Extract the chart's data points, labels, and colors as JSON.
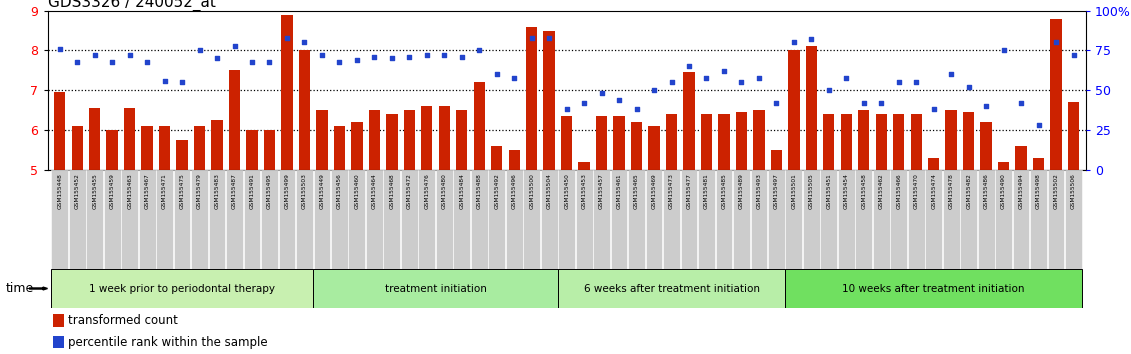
{
  "title": "GDS3326 / 240052_at",
  "ylim_left": [
    5,
    9
  ],
  "ylim_right": [
    0,
    100
  ],
  "yticks_left": [
    5,
    6,
    7,
    8,
    9
  ],
  "yticks_right": [
    0,
    25,
    50,
    75,
    100
  ],
  "ytick_labels_right": [
    "0",
    "25",
    "50",
    "75",
    "100%"
  ],
  "bar_color": "#cc2200",
  "dot_color": "#2244cc",
  "categories": [
    "GSM155448",
    "GSM155452",
    "GSM155455",
    "GSM155459",
    "GSM155463",
    "GSM155467",
    "GSM155471",
    "GSM155475",
    "GSM155479",
    "GSM155483",
    "GSM155487",
    "GSM155491",
    "GSM155495",
    "GSM155499",
    "GSM155503",
    "GSM155449",
    "GSM155456",
    "GSM155460",
    "GSM155464",
    "GSM155468",
    "GSM155472",
    "GSM155476",
    "GSM155480",
    "GSM155484",
    "GSM155488",
    "GSM155492",
    "GSM155496",
    "GSM155500",
    "GSM155504",
    "GSM155450",
    "GSM155453",
    "GSM155457",
    "GSM155461",
    "GSM155465",
    "GSM155469",
    "GSM155473",
    "GSM155477",
    "GSM155481",
    "GSM155485",
    "GSM155489",
    "GSM155493",
    "GSM155497",
    "GSM155501",
    "GSM155505",
    "GSM155451",
    "GSM155454",
    "GSM155458",
    "GSM155462",
    "GSM155466",
    "GSM155470",
    "GSM155474",
    "GSM155478",
    "GSM155482",
    "GSM155486",
    "GSM155490",
    "GSM155494",
    "GSM155498",
    "GSM155502",
    "GSM155506"
  ],
  "bar_values": [
    6.95,
    6.1,
    6.55,
    6.0,
    6.55,
    6.1,
    6.1,
    5.75,
    6.1,
    6.25,
    7.5,
    6.0,
    6.0,
    8.9,
    8.0,
    6.5,
    6.1,
    6.2,
    6.5,
    6.4,
    6.5,
    6.6,
    6.6,
    6.5,
    7.2,
    5.6,
    5.5,
    8.6,
    8.5,
    6.35,
    5.2,
    6.35,
    6.35,
    6.2,
    6.1,
    6.4,
    7.45,
    6.4,
    6.4,
    6.45,
    6.5,
    5.5,
    8.0,
    8.1,
    6.4,
    6.4,
    6.5,
    6.4,
    6.4,
    6.4,
    5.3,
    6.5,
    6.45,
    6.2,
    5.2,
    5.6,
    5.3,
    8.8,
    6.7
  ],
  "dot_values": [
    76,
    68,
    72,
    68,
    72,
    68,
    56,
    55,
    75,
    70,
    78,
    68,
    68,
    83,
    80,
    72,
    68,
    69,
    71,
    70,
    71,
    72,
    72,
    71,
    75,
    60,
    58,
    83,
    83,
    38,
    42,
    48,
    44,
    38,
    50,
    55,
    65,
    58,
    62,
    55,
    58,
    42,
    80,
    82,
    50,
    58,
    42,
    42,
    55,
    55,
    38,
    60,
    52,
    40,
    75,
    42,
    28,
    80,
    72
  ],
  "group_ranges": [
    [
      0,
      15
    ],
    [
      15,
      29
    ],
    [
      29,
      42
    ],
    [
      42,
      59
    ]
  ],
  "group_labels": [
    "1 week prior to periodontal therapy",
    "treatment initiation",
    "6 weeks after treatment initiation",
    "10 weeks after treatment initiation"
  ],
  "group_colors": [
    "#c8f0b0",
    "#a8eca0",
    "#b8eea8",
    "#70e060"
  ],
  "time_label": "time",
  "legend_bar_label": "transformed count",
  "legend_dot_label": "percentile rank within the sample"
}
